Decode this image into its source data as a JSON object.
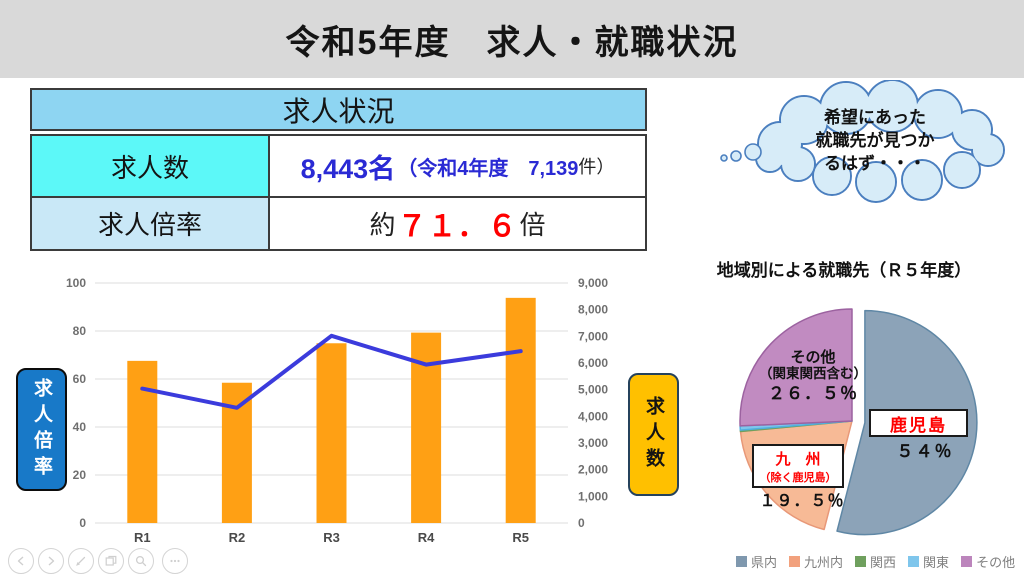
{
  "page_title": "令和5年度　求人・就職状況",
  "recruit_table": {
    "header": "求人状況",
    "row_kyujinsu": {
      "label": "求人数",
      "value_main": "8,443名",
      "value_paren_blue": "（令和4年度　7,139",
      "value_paren_black": " 件）"
    },
    "row_bairitsu": {
      "label": "求人倍率",
      "value_prefix": "約 ",
      "value_red": "７１．６",
      "value_suffix": "倍"
    }
  },
  "thought_bubble": {
    "lines": [
      "希望にあった",
      "就職先が見つか",
      "るはず・・・"
    ]
  },
  "axis_boxes": {
    "left": "求人倍率",
    "right": "求人数"
  },
  "colors": {
    "banner_bg": "#D9D9D9",
    "table_header_bg": "#8ED5F2",
    "cell_cyan": "#5CF8F8",
    "cell_pale_blue": "#C9E8F7",
    "value_blue": "#2A2AD4",
    "value_red": "#FF0000",
    "bar_orange": "#FFA014",
    "line_blue": "#3B3BDC",
    "left_box_bg": "#1879C8",
    "right_box_bg": "#FFC000",
    "bubble_fill": "#D7ECF8",
    "bubble_stroke": "#4B7FBF"
  },
  "chart_data": [
    {
      "type": "bar",
      "subtype": "bar+line combo, dual axis",
      "categories": [
        "R1",
        "R2",
        "R3",
        "R4",
        "R5"
      ],
      "series": [
        {
          "name": "求人数",
          "type": "bar",
          "axis": "right",
          "color": "#FFA014",
          "values": [
            6080,
            5260,
            6740,
            7139,
            8443
          ]
        },
        {
          "name": "求人倍率",
          "type": "line",
          "axis": "left",
          "color": "#3B3BDC",
          "values": [
            56,
            48,
            78,
            66,
            71.6
          ]
        }
      ],
      "left_axis": {
        "label": "求人倍率",
        "min": 0,
        "max": 100,
        "step": 20
      },
      "right_axis": {
        "label": "求人数",
        "min": 0,
        "max": 9000,
        "step": 1000
      },
      "grid": true,
      "legend_position": "none"
    },
    {
      "type": "pie",
      "title": "地域別による就職先（Ｒ５年度）",
      "segments": [
        {
          "name": "県内",
          "pct": 54,
          "color": "#8CA3B8",
          "stroke": "#5F87A5",
          "exploded": true
        },
        {
          "name": "九州内",
          "pct": 19.5,
          "color": "#F7BA96",
          "stroke": "#E89878",
          "exploded": false
        },
        {
          "name": "関西",
          "pct": 0.2,
          "color": "#6FA05E",
          "stroke": "#6FA05E",
          "exploded": false
        },
        {
          "name": "関東",
          "pct": 0.6,
          "color": "#7FC6EC",
          "stroke": "#4FB0E0",
          "exploded": false
        },
        {
          "name": "その他",
          "pct": 25.7,
          "color": "#C18BC1",
          "stroke": "#9C62A0",
          "exploded": false
        }
      ],
      "callouts": {
        "sonota_line1": "その他",
        "sonota_line2": "（関東関西含む）",
        "sonota_line3": "２６．５％",
        "kagoshima_box": "鹿児島",
        "kagoshima_pct": "５４％",
        "kyushu_box_line1": "九　州",
        "kyushu_box_line2": "（除く鹿児島）",
        "kyushu_pct": "１９．５％"
      },
      "legend_position": "bottom",
      "legend": [
        {
          "label": "県内",
          "color": "#7F98AE"
        },
        {
          "label": "九州内",
          "color": "#F2A17D"
        },
        {
          "label": "関西",
          "color": "#6FA05E"
        },
        {
          "label": "関東",
          "color": "#7FC6EC"
        },
        {
          "label": "その他",
          "color": "#BC85BC"
        }
      ]
    }
  ],
  "toolbar": {
    "icons": [
      "previous-slide",
      "next-slide",
      "pen",
      "see-all-slides",
      "zoom",
      "more-options"
    ]
  }
}
